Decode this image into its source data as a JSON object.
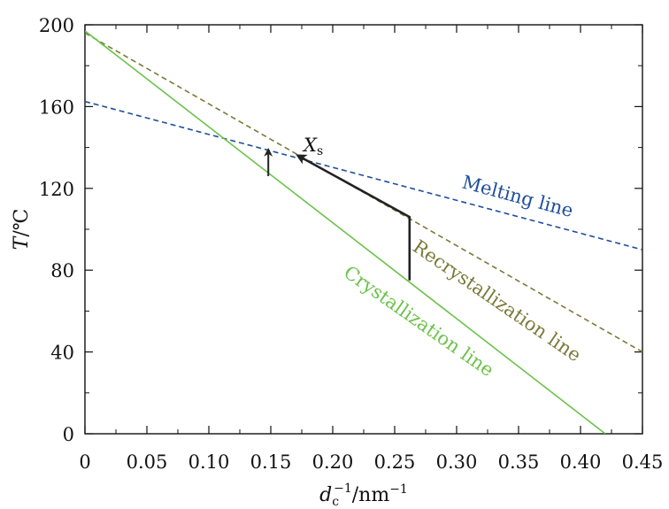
{
  "chart_data": {
    "type": "line",
    "xlabel": {
      "base": "d",
      "sub": "c",
      "sup": "−1",
      "rest": "/nm",
      "rest_sup": "−1"
    },
    "ylabel": {
      "italic": "T",
      "rest": "/℃"
    },
    "xlim": [
      0,
      0.45
    ],
    "ylim": [
      0,
      200
    ],
    "x_ticks": [
      0,
      0.05,
      0.1,
      0.15,
      0.2,
      0.25,
      0.3,
      0.35,
      0.4,
      0.45
    ],
    "x_tick_labels": [
      "0",
      "0.05",
      "0.10",
      "0.15",
      "0.20",
      "0.25",
      "0.30",
      "0.35",
      "0.40",
      "0.45"
    ],
    "y_ticks": [
      0,
      40,
      80,
      120,
      160,
      200
    ],
    "y_tick_labels": [
      "0",
      "40",
      "80",
      "120",
      "160",
      "200"
    ],
    "series": [
      {
        "name": "Melting line",
        "style": "dashed",
        "color": "#1f4e9c",
        "x": [
          0,
          0.45
        ],
        "y": [
          162.5,
          90
        ]
      },
      {
        "name": "Recrystallization line",
        "style": "dashed",
        "color": "#7a7a3a",
        "x": [
          0,
          0.45
        ],
        "y": [
          196,
          40
        ]
      },
      {
        "name": "Crystallization line",
        "style": "solid",
        "color": "#6cc24a",
        "x": [
          0,
          0.42
        ],
        "y": [
          197,
          0
        ]
      }
    ],
    "annotations": {
      "point_label": {
        "base": "X",
        "sub": "s",
        "x": 0.175,
        "y": 144
      },
      "path": {
        "x": [
          0.262,
          0.262,
          0.172
        ],
        "y": [
          75,
          106,
          136
        ],
        "color": "#222222"
      },
      "small_arrow": {
        "x": [
          0.148,
          0.148
        ],
        "y": [
          126,
          139
        ],
        "color": "#222222"
      }
    }
  }
}
